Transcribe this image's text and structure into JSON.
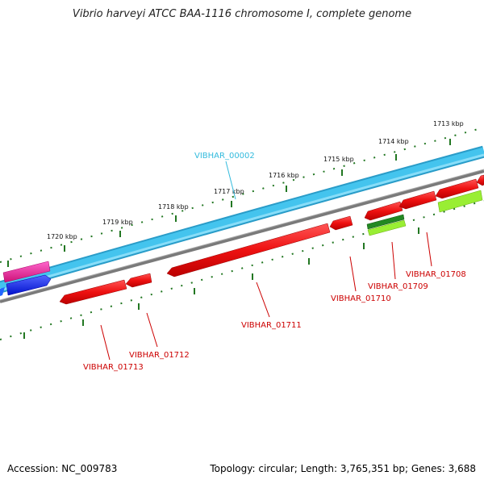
{
  "title": "Vibrio harveyi ATCC BAA-1116 chromosome I, complete genome",
  "footer": {
    "accession": "Accession: NC_009783",
    "topology": "Topology: circular; Length: 3,765,351 bp; Genes: 3,688"
  },
  "kbp_labels": [
    "1720 kbp",
    "1719 kbp",
    "1718 kbp",
    "1717 kbp",
    "1716 kbp",
    "1715 kbp",
    "1714 kbp",
    "1713 kbp"
  ],
  "gene_labels": [
    {
      "text": "VIBHAR_00002",
      "color": "#33bbdd"
    },
    {
      "text": "VIBHAR_01711",
      "color": "#cc0000"
    },
    {
      "text": "VIBHAR_01712",
      "color": "#cc0000"
    },
    {
      "text": "VIBHAR_01713",
      "color": "#cc0000"
    },
    {
      "text": "VIBHAR_01710",
      "color": "#cc0000"
    },
    {
      "text": "VIBHAR_01709",
      "color": "#cc0000"
    },
    {
      "text": "VIBHAR_01708",
      "color": "#cc0000"
    }
  ],
  "colors": {
    "backbone": "#44c4ee",
    "backbone_dark": "#2a9cc8",
    "reverse_track": "#7a7a7a",
    "gene_red": "#ee1111",
    "gene_pink": "#ee2299",
    "gene_blue": "#1122ee",
    "gene_green": "#228822",
    "gene_lime": "#99ee33",
    "tick_green": "#227722"
  }
}
